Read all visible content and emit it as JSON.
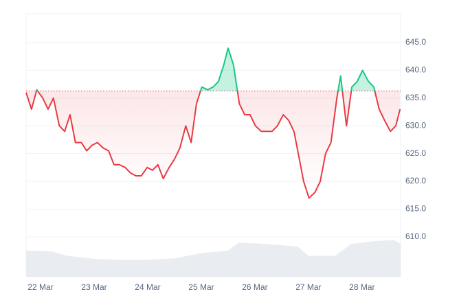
{
  "chart_data": {
    "type": "line",
    "x": [
      -0.27,
      -0.17,
      -0.07,
      0.04,
      0.14,
      0.24,
      0.35,
      0.45,
      0.55,
      0.65,
      0.76,
      0.86,
      0.96,
      1.06,
      1.17,
      1.27,
      1.37,
      1.47,
      1.58,
      1.68,
      1.78,
      1.88,
      1.99,
      2.09,
      2.19,
      2.29,
      2.4,
      2.5,
      2.6,
      2.71,
      2.81,
      2.91,
      3.01,
      3.12,
      3.22,
      3.32,
      3.42,
      3.5,
      3.6,
      3.71,
      3.81,
      3.91,
      4.01,
      4.12,
      4.22,
      4.32,
      4.42,
      4.53,
      4.63,
      4.73,
      4.83,
      4.91,
      5.01,
      5.12,
      5.22,
      5.32,
      5.42,
      5.53,
      5.6,
      5.71,
      5.81,
      5.91,
      6.01,
      6.12,
      6.22,
      6.32,
      6.42,
      6.53,
      6.63,
      6.71
    ],
    "series": [
      {
        "color": "#ea3943",
        "up_color": "#16c784",
        "values": [
          636,
          633,
          636.5,
          635,
          633,
          635,
          630,
          629,
          632,
          627,
          627,
          625.5,
          626.5,
          627,
          626,
          625.5,
          623,
          623,
          622.5,
          621.5,
          621,
          621,
          622.5,
          622,
          623,
          620.5,
          622.5,
          624,
          626,
          630,
          627,
          634,
          637,
          636.5,
          637,
          638,
          641,
          644,
          641,
          634,
          632,
          632,
          630,
          629,
          629,
          629,
          630,
          632,
          631,
          629,
          624,
          620,
          617,
          618,
          620,
          625,
          627,
          635,
          639,
          630,
          637,
          638,
          640,
          638,
          637,
          633,
          631,
          629,
          630,
          633
        ]
      },
      {
        "axis": "y2",
        "color": "#e9ecf1",
        "x": [
          -0.27,
          0.2,
          0.5,
          1.0,
          1.5,
          2.0,
          2.5,
          3.0,
          3.5,
          3.7,
          4.2,
          4.8,
          5.0,
          5.5,
          5.8,
          6.2,
          6.6,
          6.72
        ],
        "values": [
          10,
          9.7,
          8,
          6.8,
          6.5,
          6.5,
          7,
          9,
          10,
          13,
          12.5,
          11.5,
          8,
          8,
          12.5,
          13.5,
          14,
          12.5
        ]
      }
    ],
    "baseline": 636.3,
    "xlim": [
      -0.27,
      6.72
    ],
    "xticks": [
      {
        "value": 0,
        "label": "22 Mar"
      },
      {
        "value": 1,
        "label": "23 Mar"
      },
      {
        "value": 2,
        "label": "24 Mar"
      },
      {
        "value": 3,
        "label": "25 Mar"
      },
      {
        "value": 4,
        "label": "26 Mar"
      },
      {
        "value": 5,
        "label": "27 Mar"
      },
      {
        "value": 6,
        "label": "28 Mar"
      }
    ],
    "ylim": [
      602.8,
      650.2
    ],
    "yticks": [
      {
        "value": 610,
        "label": "610.0"
      },
      {
        "value": 615,
        "label": "615.0"
      },
      {
        "value": 620,
        "label": "620.0"
      },
      {
        "value": 625,
        "label": "625.0"
      },
      {
        "value": 630,
        "label": "630.0"
      },
      {
        "value": 635,
        "label": "635.0"
      },
      {
        "value": 640,
        "label": "640.0"
      },
      {
        "value": 645,
        "label": "645.0"
      }
    ],
    "y2lim": [
      0,
      100
    ],
    "grid": true
  }
}
